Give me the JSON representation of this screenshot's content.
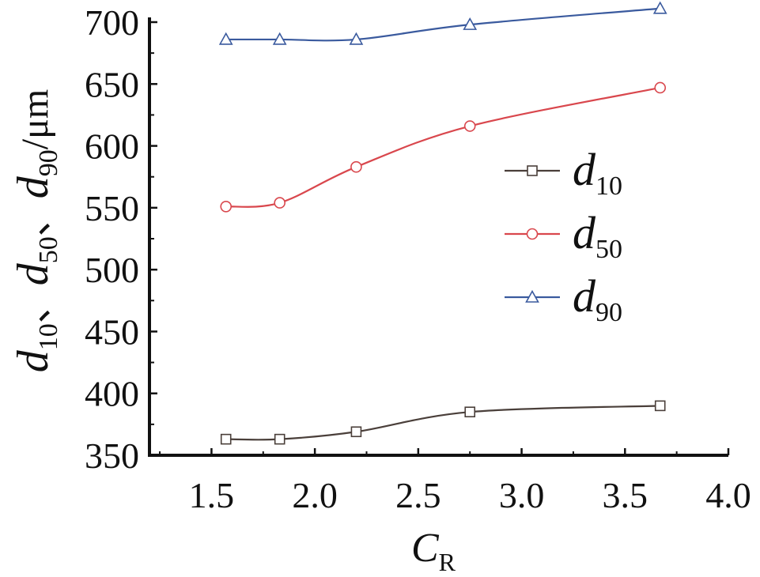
{
  "chart_data": {
    "type": "line",
    "xlabel": {
      "main": "C",
      "sub": "R"
    },
    "ylabel": [
      {
        "main": "d",
        "sub": "10"
      },
      {
        "sep": "、"
      },
      {
        "main": "d",
        "sub": "50"
      },
      {
        "sep": "、"
      },
      {
        "main": "d",
        "sub": "90"
      },
      {
        "sep": "/μm"
      }
    ],
    "xlim": [
      1.2,
      4.0
    ],
    "ylim": [
      350,
      700
    ],
    "xticks": [
      1.5,
      2.0,
      2.5,
      3.0,
      3.5,
      4.0
    ],
    "xtick_labels": [
      "1.5",
      "2.0",
      "2.5",
      "3.0",
      "3.5",
      "4.0"
    ],
    "yticks": [
      350,
      400,
      450,
      500,
      550,
      600,
      650,
      700
    ],
    "ytick_labels": [
      "350",
      "400",
      "450",
      "500",
      "550",
      "600",
      "650",
      "700"
    ],
    "grid": false,
    "legend_position": "right-middle",
    "x": [
      1.57,
      1.83,
      2.2,
      2.75,
      3.67
    ],
    "series": [
      {
        "name": "d",
        "name_sub": "10",
        "marker": "square",
        "color": "#4a3f3a",
        "values": [
          363,
          363,
          369,
          385,
          390
        ]
      },
      {
        "name": "d",
        "name_sub": "50",
        "marker": "circle",
        "color": "#d9474d",
        "values": [
          551,
          554,
          583,
          616,
          647
        ]
      },
      {
        "name": "d",
        "name_sub": "90",
        "marker": "triangle",
        "color": "#3a5a9e",
        "values": [
          686,
          686,
          686,
          698,
          711
        ]
      }
    ]
  }
}
